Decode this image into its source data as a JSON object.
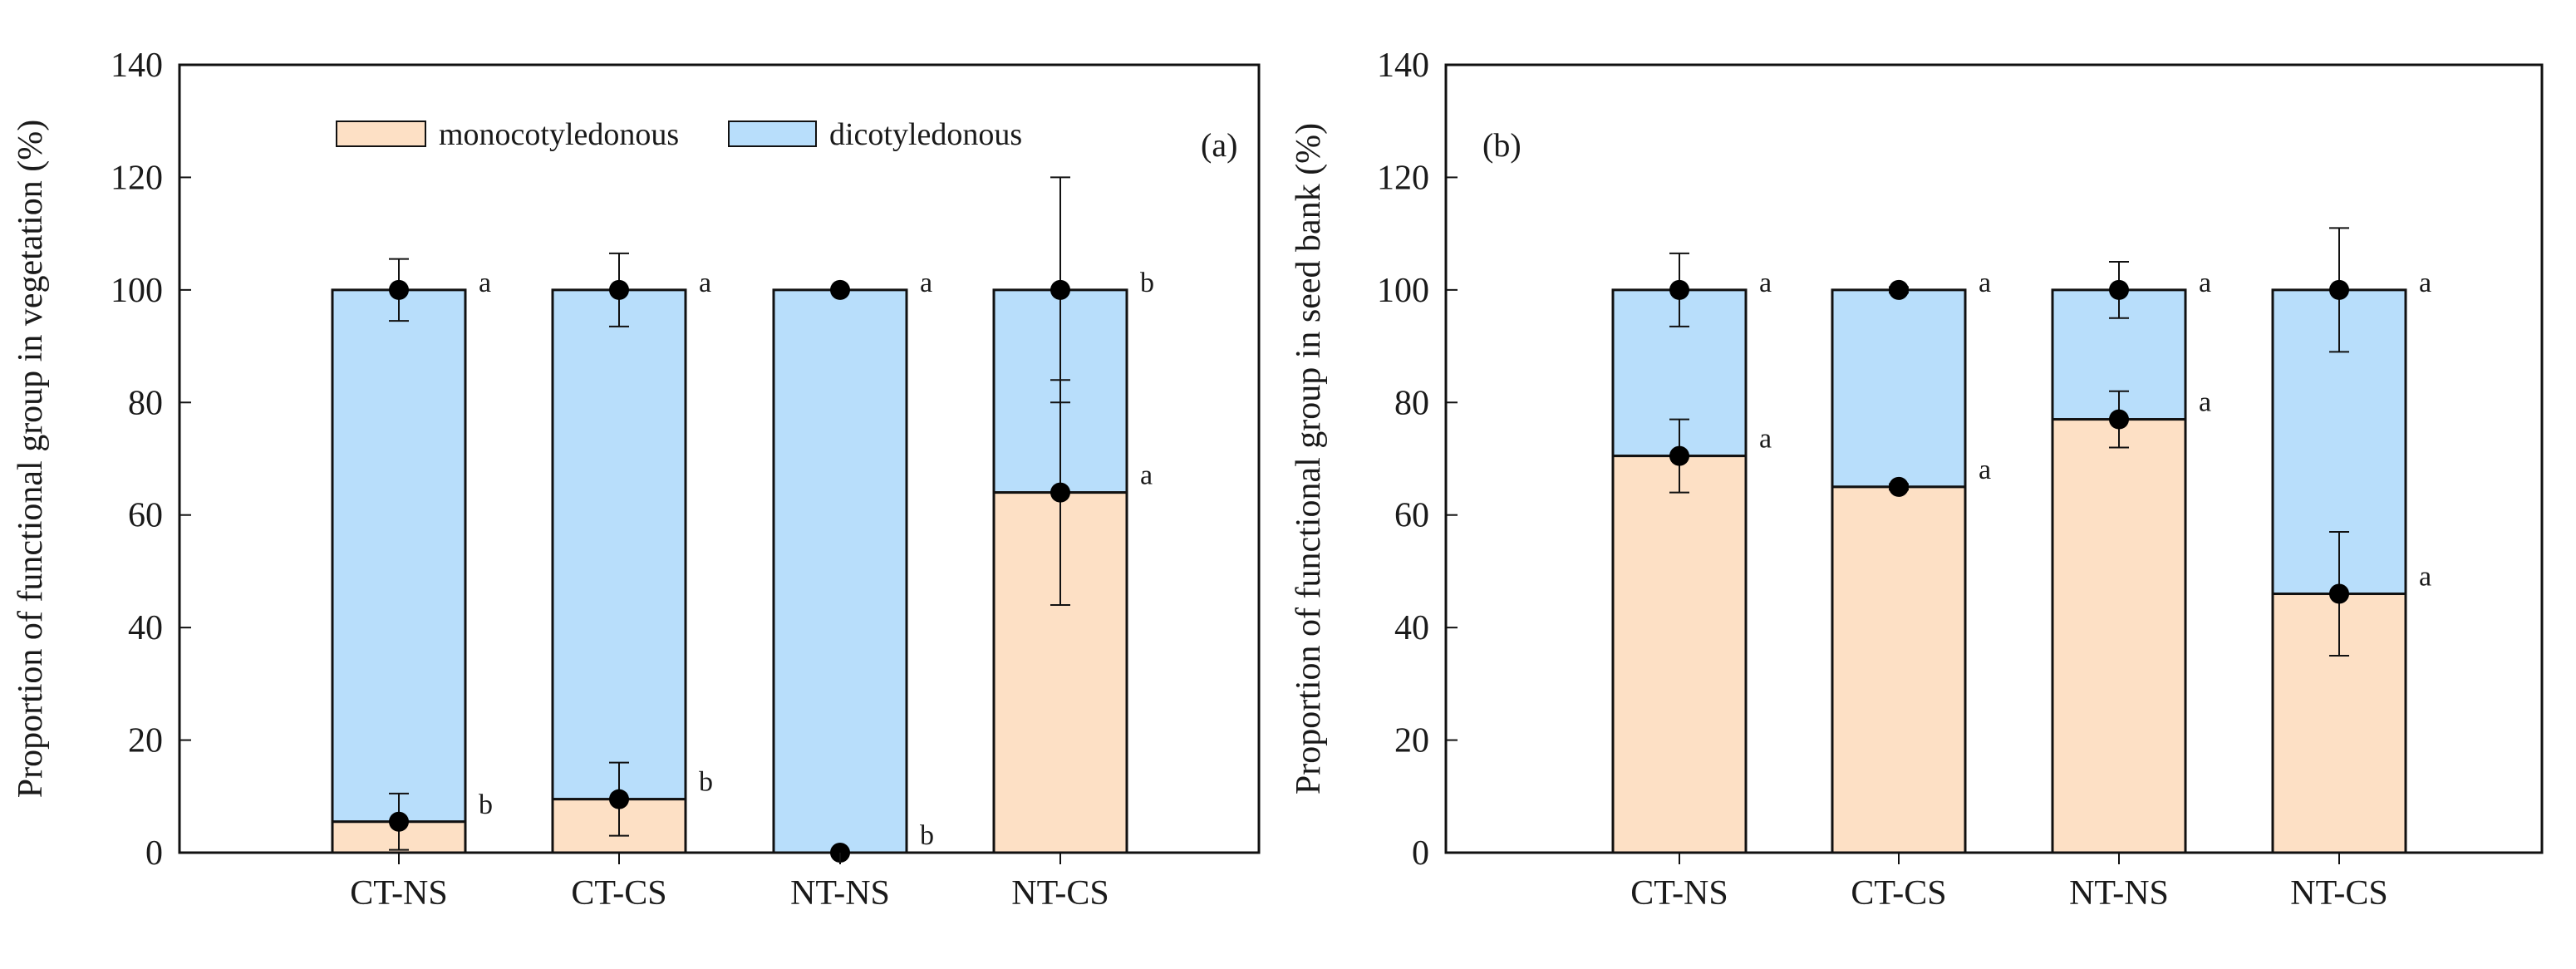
{
  "colors": {
    "monocotyledonous": "#fde0c5",
    "dicotyledonous": "#b8defb",
    "outline": "#111111",
    "point": "#000000"
  },
  "legend": {
    "items": [
      {
        "label": "monocotyledonous",
        "color": "#fde0c5"
      },
      {
        "label": "dicotyledonous",
        "color": "#b8defb"
      }
    ]
  },
  "chart_data": [
    {
      "type": "bar",
      "stacked": true,
      "panel_label": "(a)",
      "title": "",
      "xlabel": "",
      "ylabel": "Proportion of functional group in vegetation (%)",
      "ylim": [
        0,
        140
      ],
      "yticks": [
        0,
        20,
        40,
        60,
        80,
        100,
        120,
        140
      ],
      "categories": [
        "CT-NS",
        "CT-CS",
        "NT-NS",
        "NT-CS"
      ],
      "legend_position": "top",
      "series": [
        {
          "name": "monocotyledonous",
          "values": [
            5.5,
            9.5,
            0,
            64
          ],
          "error": [
            5,
            6.5,
            0,
            20
          ],
          "letters": [
            "b",
            "b",
            "b",
            "a"
          ]
        },
        {
          "name": "dicotyledonous",
          "values": [
            94.5,
            90.5,
            100,
            36
          ],
          "total_mean": [
            100,
            100,
            100,
            100
          ],
          "error": [
            5.5,
            6.5,
            0,
            20
          ],
          "letters": [
            "a",
            "a",
            "a",
            "b"
          ]
        }
      ]
    },
    {
      "type": "bar",
      "stacked": true,
      "panel_label": "(b)",
      "title": "",
      "xlabel": "",
      "ylabel": "Proportion of functional group in seed bank (%)",
      "ylim": [
        0,
        140
      ],
      "yticks": [
        0,
        20,
        40,
        60,
        80,
        100,
        120,
        140
      ],
      "categories": [
        "CT-NS",
        "CT-CS",
        "NT-NS",
        "NT-CS"
      ],
      "series": [
        {
          "name": "monocotyledonous",
          "values": [
            70.5,
            65,
            77,
            46
          ],
          "error": [
            6.5,
            0.5,
            5,
            11
          ],
          "letters": [
            "a",
            "a",
            "a",
            "a"
          ]
        },
        {
          "name": "dicotyledonous",
          "values": [
            29.5,
            35,
            23,
            54
          ],
          "total_mean": [
            100,
            100,
            100,
            100
          ],
          "error": [
            6.5,
            0.5,
            5,
            11
          ],
          "letters": [
            "a",
            "a",
            "a",
            "a"
          ]
        }
      ]
    }
  ]
}
